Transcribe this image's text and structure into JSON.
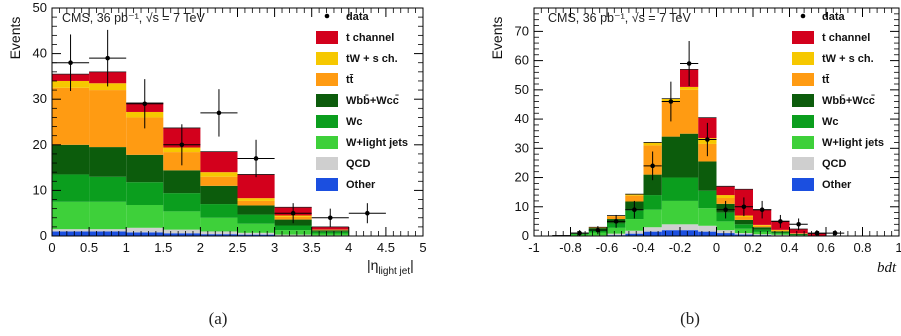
{
  "colors": {
    "t_channel": "#d3001c",
    "tW_s_ch": "#f6c800",
    "ttbar": "#ff9b12",
    "wbb": "#0c5c0c",
    "wc": "#0b9e1e",
    "wlight": "#3ed03a",
    "qcd": "#cfcfcf",
    "other": "#1b4fe0"
  },
  "chart_data": [
    {
      "type": "bar",
      "stacked": true,
      "header": "CMS, 36 pb⁻¹, √s = 7 TeV",
      "ylabel": "Events",
      "xlabel_main": "|η",
      "xlabel_sub": "light jet",
      "xlabel_close": "|",
      "caption": "(a)",
      "xlim": [
        0,
        5
      ],
      "ylim": [
        0,
        50
      ],
      "xticks": [
        "0",
        "0.5",
        "1",
        "1.5",
        "2",
        "2.5",
        "3",
        "3.5",
        "4",
        "4.5",
        "5"
      ],
      "yticks": [
        "0",
        "10",
        "20",
        "30",
        "40",
        "50"
      ],
      "bin_edges": [
        0,
        0.5,
        1,
        1.5,
        2,
        2.5,
        3,
        3.5,
        4,
        4.5
      ],
      "stack_order": [
        "other",
        "qcd",
        "wlight",
        "wc",
        "wbb",
        "ttbar",
        "tW_s_ch",
        "t_channel"
      ],
      "series": [
        {
          "key": "other",
          "values": [
            1,
            1,
            0.8,
            0.6,
            0.4,
            0.3,
            0.1,
            0.05,
            0
          ]
        },
        {
          "key": "qcd",
          "values": [
            0.5,
            0.5,
            1,
            0.8,
            0.6,
            0.4,
            0.2,
            0.1,
            0
          ]
        },
        {
          "key": "wlight",
          "values": [
            6,
            6,
            5,
            4,
            3,
            2,
            1,
            0.4,
            0
          ]
        },
        {
          "key": "wc",
          "values": [
            6,
            5.5,
            5,
            4,
            3,
            2,
            1,
            0.4,
            0
          ]
        },
        {
          "key": "wbb",
          "values": [
            6.5,
            6.5,
            6,
            5,
            4,
            2,
            1.3,
            0.3,
            0
          ]
        },
        {
          "key": "ttbar",
          "values": [
            12.5,
            12.5,
            8.2,
            4,
            2,
            1,
            0.6,
            0.1,
            0
          ]
        },
        {
          "key": "tW_s_ch",
          "values": [
            1.5,
            1.5,
            1.2,
            1,
            1,
            0.6,
            0.3,
            0.05,
            0
          ]
        },
        {
          "key": "t_channel",
          "values": [
            1.5,
            2.5,
            2,
            4.3,
            4.5,
            5.2,
            1.8,
            0.6,
            0
          ]
        }
      ],
      "data": {
        "x": [
          0.25,
          0.75,
          1.25,
          1.75,
          2.25,
          2.75,
          3.25,
          3.75,
          4.25
        ],
        "y": [
          38,
          39,
          29,
          20,
          27,
          17,
          5,
          4,
          5
        ],
        "err": [
          6.2,
          6.2,
          5.4,
          4.5,
          5.2,
          4.1,
          2.2,
          2,
          2.2
        ]
      },
      "legend": [
        {
          "key": "data",
          "label": "data",
          "marker": "point"
        },
        {
          "key": "t_channel",
          "label": "t channel"
        },
        {
          "key": "tW_s_ch",
          "label": "tW + s ch."
        },
        {
          "key": "ttbar",
          "label": "tt̄"
        },
        {
          "key": "wbb",
          "label": "Wbb̄+Wcc̄"
        },
        {
          "key": "wc",
          "label": "Wc"
        },
        {
          "key": "wlight",
          "label": "W+light jets"
        },
        {
          "key": "qcd",
          "label": "QCD"
        },
        {
          "key": "other",
          "label": "Other"
        }
      ]
    },
    {
      "type": "bar",
      "stacked": true,
      "header": "CMS, 36 pb⁻¹, √s = 7 TeV",
      "ylabel": "Events",
      "xlabel": "bdt",
      "caption": "(b)",
      "xlim": [
        -1,
        1
      ],
      "ylim": [
        0,
        78
      ],
      "xticks": [
        "-1",
        "-0.8",
        "-0.6",
        "-0.4",
        "-0.2",
        "0",
        "0.2",
        "0.4",
        "0.6",
        "0.8",
        "1"
      ],
      "yticks": [
        "0",
        "10",
        "20",
        "30",
        "40",
        "50",
        "60",
        "70"
      ],
      "bin_edges": [
        -0.9,
        -0.8,
        -0.7,
        -0.6,
        -0.5,
        -0.4,
        -0.3,
        -0.2,
        -0.1,
        0,
        0.1,
        0.2,
        0.3,
        0.4,
        0.5,
        0.6,
        0.7,
        0.8
      ],
      "stack_order": [
        "other",
        "qcd",
        "wlight",
        "wc",
        "wbb",
        "ttbar",
        "tW_s_ch",
        "t_channel"
      ],
      "series": [
        {
          "key": "other",
          "values": [
            0,
            0,
            0,
            0.3,
            0.8,
            1.5,
            2,
            2,
            1.5,
            1,
            0.5,
            0.3,
            0.2,
            0,
            0,
            0,
            0
          ]
        },
        {
          "key": "qcd",
          "values": [
            0,
            0,
            0.2,
            0.5,
            1,
            1.5,
            2,
            2,
            2,
            1,
            0.5,
            0.3,
            0.2,
            0.1,
            0,
            0,
            0
          ]
        },
        {
          "key": "wlight",
          "values": [
            0.2,
            0.5,
            1,
            2,
            4,
            6,
            8,
            8,
            6,
            3,
            1.5,
            0.8,
            0.4,
            0.2,
            0.1,
            0,
            0
          ]
        },
        {
          "key": "wc",
          "values": [
            0,
            0.3,
            0.8,
            1.5,
            3,
            5,
            8,
            8,
            6,
            3,
            1.5,
            0.8,
            0.4,
            0.2,
            0,
            0,
            0
          ]
        },
        {
          "key": "wbb",
          "values": [
            0,
            0.2,
            0.7,
            1.5,
            3,
            7,
            14,
            15,
            10,
            3,
            1.5,
            0.8,
            0.4,
            0.2,
            0,
            0,
            0
          ]
        },
        {
          "key": "ttbar",
          "values": [
            0,
            0,
            0.3,
            1,
            2,
            10,
            12,
            15,
            6,
            2,
            1,
            0.5,
            0.3,
            0.1,
            0,
            0,
            0
          ]
        },
        {
          "key": "tW_s_ch",
          "values": [
            0,
            0,
            0,
            0.2,
            0.5,
            1,
            1,
            1,
            2,
            1,
            0.5,
            0.3,
            0.2,
            0.1,
            0,
            0,
            0
          ]
        },
        {
          "key": "t_channel",
          "values": [
            0,
            0,
            0,
            0,
            0,
            0,
            0,
            6,
            7,
            3,
            9,
            5.2,
            3,
            1.5,
            0.8,
            0,
            0
          ]
        }
      ],
      "data": {
        "x": [
          -0.85,
          -0.75,
          -0.65,
          -0.55,
          -0.45,
          -0.35,
          -0.25,
          -0.15,
          -0.05,
          0.05,
          0.15,
          0.25,
          0.35,
          0.45,
          0.55,
          0.65,
          0.75
        ],
        "y": [
          0,
          1,
          2,
          5,
          9,
          24,
          46,
          59,
          33,
          9,
          10,
          9,
          5,
          4,
          1,
          1,
          0
        ],
        "err": [
          0,
          1,
          1.4,
          2.2,
          3,
          4.9,
          6.8,
          7.7,
          5.7,
          3,
          3.2,
          3,
          2.2,
          2,
          1,
          1,
          0
        ]
      },
      "legend": [
        {
          "key": "data",
          "label": "data",
          "marker": "point"
        },
        {
          "key": "t_channel",
          "label": "t channel"
        },
        {
          "key": "tW_s_ch",
          "label": "tW + s ch."
        },
        {
          "key": "ttbar",
          "label": "tt̄"
        },
        {
          "key": "wbb",
          "label": "Wbb̄+Wcc̄"
        },
        {
          "key": "wc",
          "label": "Wc"
        },
        {
          "key": "wlight",
          "label": "W+light jets"
        },
        {
          "key": "qcd",
          "label": "QCD"
        },
        {
          "key": "other",
          "label": "Other"
        }
      ]
    }
  ]
}
